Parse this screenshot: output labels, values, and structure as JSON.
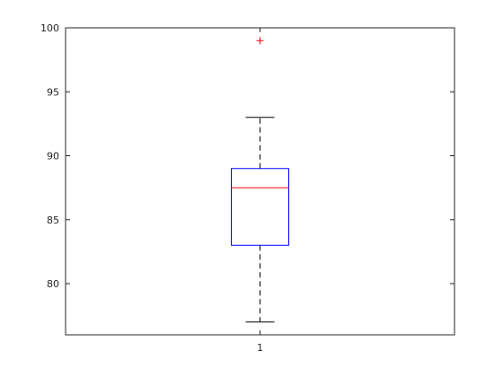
{
  "chart_data": {
    "type": "box",
    "title": "",
    "xlabel": "",
    "ylabel": "",
    "categories": [
      "1"
    ],
    "ylim": [
      76,
      100
    ],
    "yticks": [
      80,
      85,
      90,
      95,
      100
    ],
    "grid": false,
    "boxes": [
      {
        "category": "1",
        "whisker_low": 77,
        "q1": 83,
        "median": 87.5,
        "q3": 89,
        "whisker_high": 93,
        "outliers": [
          99
        ]
      }
    ],
    "colors": {
      "box": "#0000ff",
      "median": "#ff0000",
      "whisker": "#000000",
      "outlier": "#ff0000",
      "axes": "#262626"
    }
  }
}
